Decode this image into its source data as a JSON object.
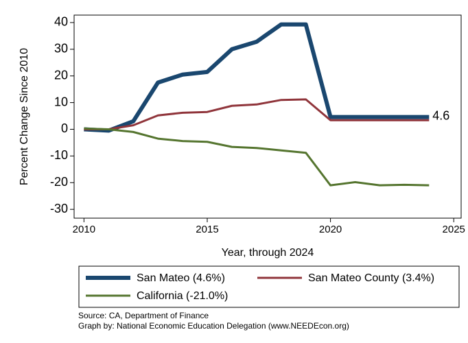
{
  "chart_data": {
    "type": "line",
    "x_label": "Year, through 2024",
    "y_label": "Percent Change Since 2010",
    "x": [
      2010,
      2011,
      2012,
      2013,
      2014,
      2015,
      2016,
      2017,
      2018,
      2019,
      2020,
      2021,
      2022,
      2023,
      2024
    ],
    "series": [
      {
        "name": "San Mateo (4.6%)",
        "color": "#1a476f",
        "width": 6,
        "values": [
          0,
          -0.5,
          3,
          17.5,
          20.5,
          21.5,
          30,
          32.8,
          39.3,
          39.3,
          4.6,
          4.6,
          4.6,
          4.6,
          4.6
        ]
      },
      {
        "name": "San Mateo County (3.4%)",
        "color": "#90353b",
        "width": 3,
        "values": [
          0,
          0,
          1.5,
          5.2,
          6.2,
          6.5,
          8.8,
          9.3,
          11,
          11.2,
          3.4,
          3.4,
          3.4,
          3.4,
          3.4
        ]
      },
      {
        "name": "California (-21.0%)",
        "color": "#55752f",
        "width": 3,
        "values": [
          0.3,
          0,
          -1,
          -3.5,
          -4.4,
          -4.7,
          -6.6,
          -7,
          -7.9,
          -8.8,
          -21,
          -19.8,
          -21,
          -20.8,
          -21
        ]
      }
    ],
    "annotations": [
      {
        "text": "4.6"
      }
    ],
    "xlim": [
      2009.6,
      2025.3
    ],
    "xticks": [
      2010,
      2015,
      2020,
      2025
    ],
    "ylim": [
      -33.3,
      42.8
    ],
    "yticks": [
      -30,
      -20,
      -10,
      0,
      10,
      20,
      30,
      40
    ],
    "source_lines": [
      "Source: CA, Department of Finance",
      "Graph by: National Economic Education Delegation (www.NEEDEcon.org)"
    ]
  }
}
